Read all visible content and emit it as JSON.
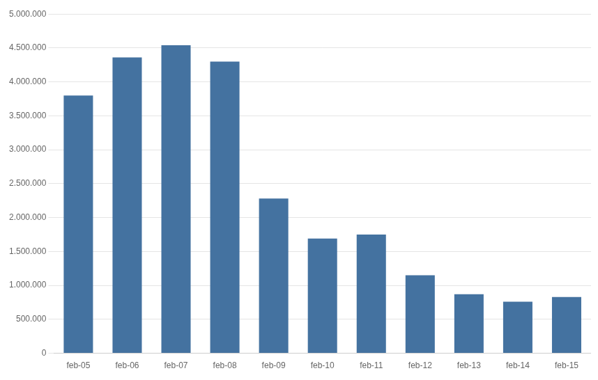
{
  "chart_data": {
    "type": "bar",
    "categories": [
      "feb-05",
      "feb-06",
      "feb-07",
      "feb-08",
      "feb-09",
      "feb-10",
      "feb-11",
      "feb-12",
      "feb-13",
      "feb-14",
      "feb-15"
    ],
    "values": [
      3800000,
      4360000,
      4540000,
      4300000,
      2280000,
      1690000,
      1750000,
      1150000,
      870000,
      760000,
      830000
    ],
    "color": "#4472a0",
    "ylim": [
      0,
      5000000
    ],
    "yticks": [
      0,
      {
        "value": 500000,
        "label": "500.000"
      },
      {
        "value": 1000000,
        "label": "1.000.000"
      },
      {
        "value": 1500000,
        "label": "1.500.000"
      },
      {
        "value": 2000000,
        "label": "2.000.000"
      },
      {
        "value": 2500000,
        "label": "2.500.000"
      },
      {
        "value": 3000000,
        "label": "3.000.000"
      },
      {
        "value": 3500000,
        "label": "3.500.000"
      },
      {
        "value": 4000000,
        "label": "4.000.000"
      },
      {
        "value": 4500000,
        "label": "4.500.000"
      },
      {
        "value": 5000000,
        "label": "5.000.000"
      }
    ],
    "grid": true
  }
}
